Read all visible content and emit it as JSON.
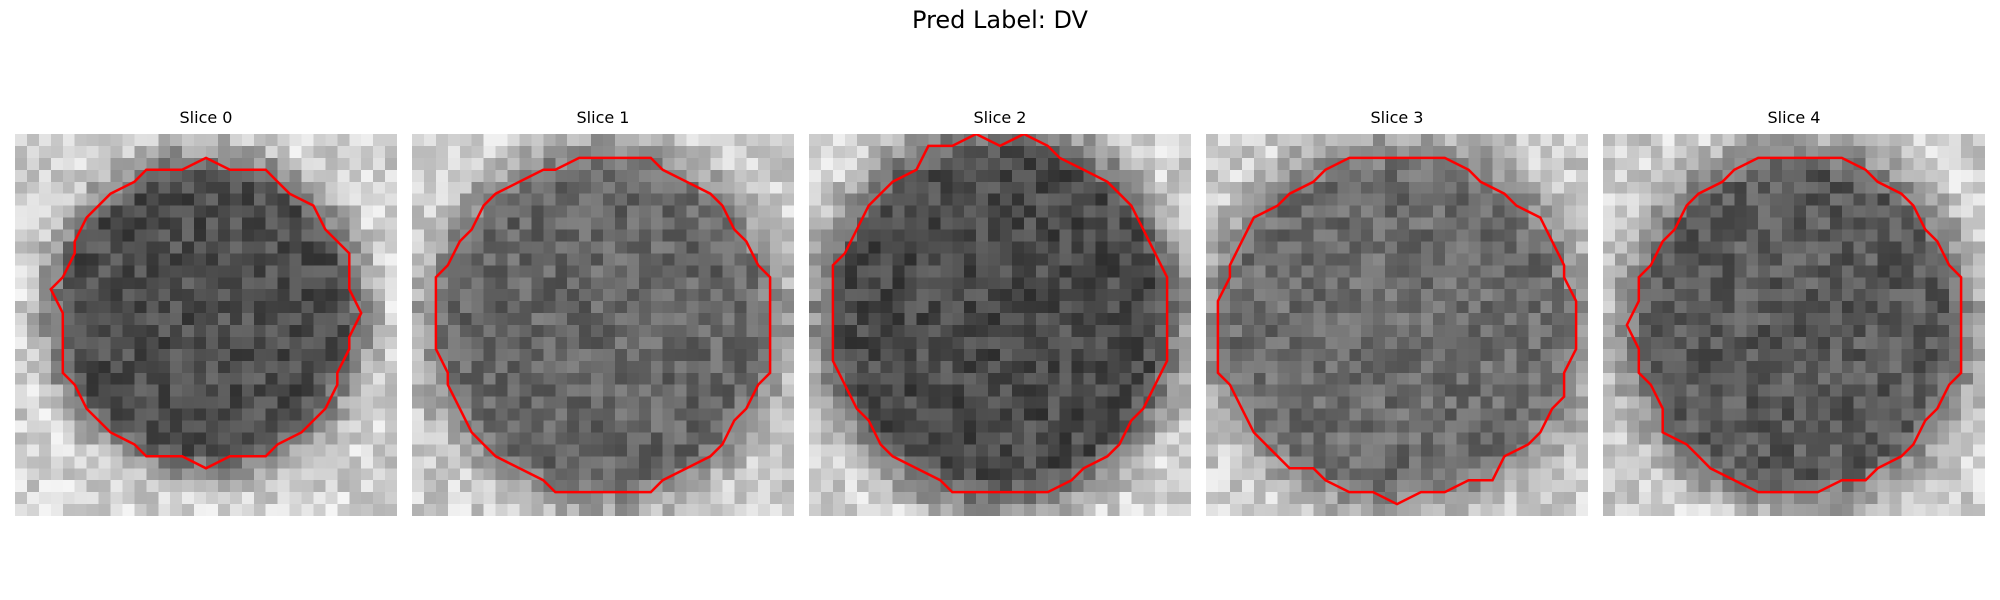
{
  "figure": {
    "title": "Pred Label: DV"
  },
  "slices": [
    {
      "title": "Slice 0",
      "center": [
        0.5,
        0.47
      ],
      "radius": [
        0.42,
        0.42
      ],
      "background": "#d2d2d2",
      "inside": "#4e4e4e",
      "contour_color": "#ff0000"
    },
    {
      "title": "Slice 1",
      "center": [
        0.5,
        0.5
      ],
      "radius": [
        0.47,
        0.47
      ],
      "background": "#cfcfcf",
      "inside": "#666666",
      "contour_color": "#ff0000"
    },
    {
      "title": "Slice 2",
      "center": [
        0.5,
        0.48
      ],
      "radius": [
        0.48,
        0.5
      ],
      "background": "#d0d0d0",
      "inside": "#4a4a4a",
      "contour_color": "#ff0000"
    },
    {
      "title": "Slice 3",
      "center": [
        0.5,
        0.5
      ],
      "radius": [
        0.5,
        0.48
      ],
      "background": "#cccccc",
      "inside": "#6c6c6c",
      "contour_color": "#ff0000"
    },
    {
      "title": "Slice 4",
      "center": [
        0.51,
        0.5
      ],
      "radius": [
        0.46,
        0.47
      ],
      "background": "#d0d0d0",
      "inside": "#5a5a5a",
      "contour_color": "#ff0000"
    }
  ]
}
